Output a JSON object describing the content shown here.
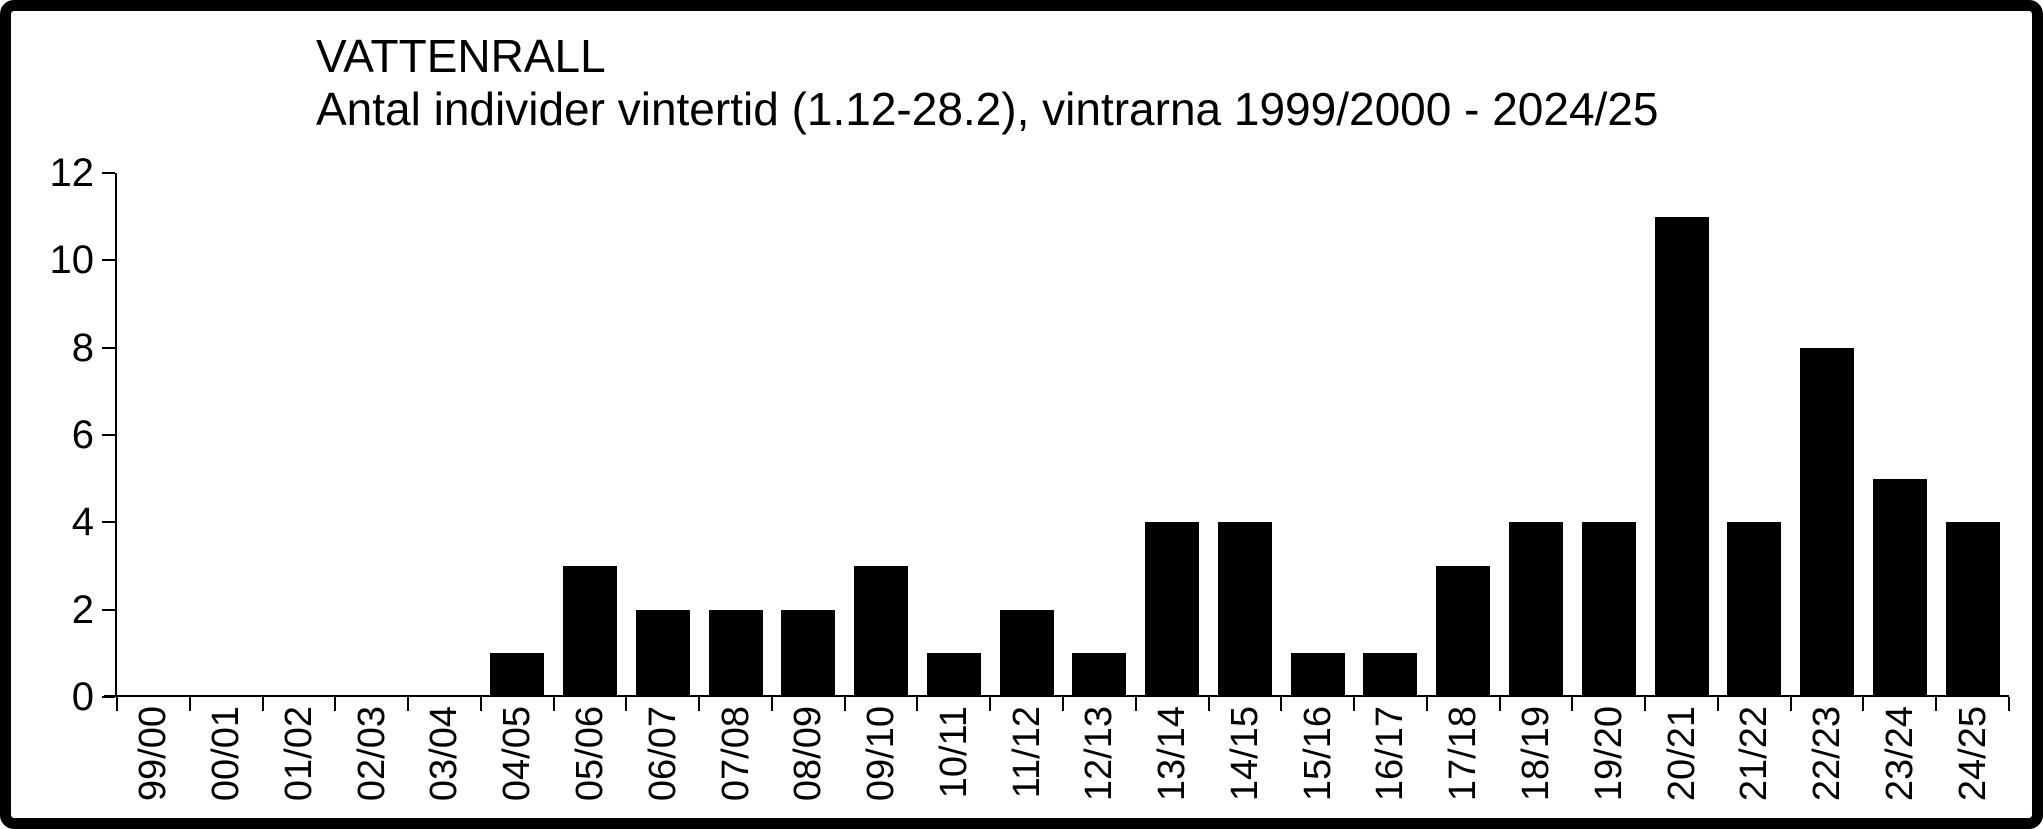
{
  "window": {
    "background_color": "#ffffff",
    "frame_border_color": "#000000"
  },
  "chart_data": {
    "type": "bar",
    "title": "VATTENRALL",
    "subtitle": "Antal individer vintertid (1.12-28.2), vintrarna 1999/2000 - 2024/25",
    "categories": [
      "99/00",
      "00/01",
      "01/02",
      "02/03",
      "03/04",
      "04/05",
      "05/06",
      "06/07",
      "07/08",
      "08/09",
      "09/10",
      "10/11",
      "11/12",
      "12/13",
      "13/14",
      "14/15",
      "15/16",
      "16/17",
      "17/18",
      "18/19",
      "19/20",
      "20/21",
      "21/22",
      "22/23",
      "23/24",
      "24/25"
    ],
    "values": [
      0,
      0,
      0,
      0,
      0,
      1,
      3,
      2,
      2,
      2,
      3,
      1,
      2,
      1,
      4,
      4,
      1,
      1,
      3,
      4,
      4,
      11,
      4,
      8,
      5,
      4
    ],
    "xlabel": "",
    "ylabel": "",
    "ylim": [
      0,
      12
    ],
    "yticks": [
      0,
      2,
      4,
      6,
      8,
      10,
      12
    ],
    "bar_color": "#000000",
    "axis_color": "#000000",
    "text_color": "#000000",
    "grid": false,
    "legend": false
  }
}
